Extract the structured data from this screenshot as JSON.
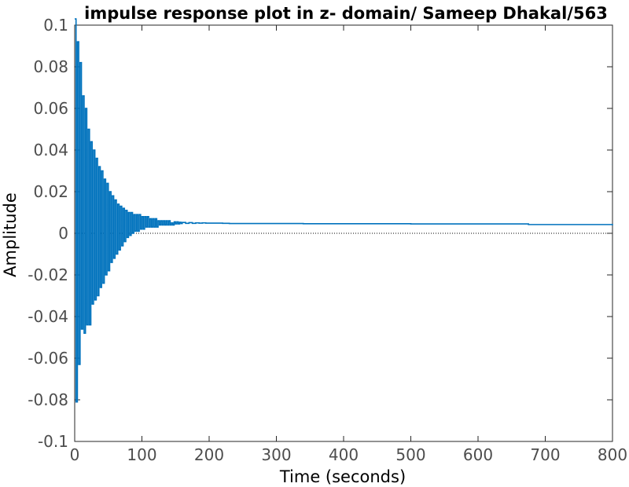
{
  "chart_data": {
    "type": "line",
    "style": "stairs",
    "title": "impulse response plot in z- domain/ Sameep Dhakal/563",
    "xlabel": "Time (seconds)",
    "ylabel": "Amplitude",
    "xlim": [
      0,
      800
    ],
    "ylim": [
      -0.1,
      0.1
    ],
    "xticks": [
      0,
      100,
      200,
      300,
      400,
      500,
      600,
      700,
      800
    ],
    "xtick_labels": [
      "0",
      "100",
      "200",
      "300",
      "400",
      "500",
      "600",
      "700",
      "800"
    ],
    "yticks": [
      0.1,
      0.08,
      0.06,
      0.04,
      0.02,
      0,
      -0.02,
      -0.04,
      -0.06,
      -0.08,
      -0.1
    ],
    "ytick_labels": [
      "0.1",
      "0.08",
      "0.06",
      "0.04",
      "0.02",
      "0",
      "-0.02",
      "-0.04",
      "-0.06",
      "-0.08",
      "-0.1"
    ],
    "grid": false,
    "zero_line": true,
    "series_color": "#0072bd",
    "series": [
      {
        "x": [
          0,
          2,
          4,
          6,
          8,
          10,
          12,
          14,
          16,
          18,
          20,
          22,
          24,
          26,
          28,
          30,
          32,
          34,
          36,
          38,
          40,
          42,
          44,
          46,
          48,
          50,
          52,
          54,
          56,
          58,
          60,
          62,
          64,
          66,
          68,
          70,
          72,
          74,
          76,
          78,
          80,
          82,
          84,
          86,
          88,
          90,
          92,
          94,
          96,
          98,
          100,
          102,
          104,
          106,
          108,
          110,
          112,
          114,
          116,
          118,
          120,
          122,
          124,
          126,
          128,
          130,
          132,
          134,
          136,
          138,
          140,
          142,
          144,
          146,
          148,
          150,
          152,
          154,
          156,
          158,
          160,
          165,
          170,
          175,
          180,
          185,
          190,
          195,
          200,
          210,
          220,
          230,
          340,
          500,
          675,
          800
        ],
        "y": [
          0.103,
          -0.081,
          0.092,
          -0.063,
          0.082,
          -0.046,
          0.066,
          -0.048,
          0.06,
          -0.044,
          0.05,
          -0.044,
          0.044,
          -0.034,
          0.04,
          -0.032,
          0.036,
          -0.03,
          0.032,
          -0.026,
          0.03,
          -0.024,
          0.026,
          -0.02,
          0.024,
          -0.018,
          0.02,
          -0.014,
          0.018,
          -0.012,
          0.016,
          -0.01,
          0.014,
          -0.008,
          0.013,
          -0.006,
          0.012,
          -0.004,
          0.011,
          -0.002,
          0.01,
          -0.001,
          0.01,
          0.0,
          0.009,
          0.001,
          0.009,
          0.001,
          0.009,
          0.002,
          0.008,
          0.002,
          0.008,
          0.003,
          0.008,
          0.003,
          0.007,
          0.003,
          0.007,
          0.003,
          0.007,
          0.003,
          0.006,
          0.004,
          0.006,
          0.004,
          0.006,
          0.004,
          0.006,
          0.004,
          0.006,
          0.004,
          0.005,
          0.004,
          0.0055,
          0.0045,
          0.0055,
          0.0045,
          0.0053,
          0.0047,
          0.0052,
          0.0048,
          0.0051,
          0.0048,
          0.005,
          0.0049,
          0.005,
          0.0049,
          0.0049,
          0.0049,
          0.0048,
          0.0047,
          0.0046,
          0.0045,
          0.0042,
          0.0038
        ]
      }
    ]
  }
}
